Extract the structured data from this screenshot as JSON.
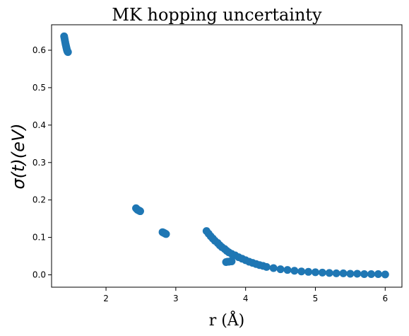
{
  "chart_data": {
    "type": "scatter",
    "title": "MK hopping uncertainty",
    "xlabel": "r (Å)",
    "ylabel": "σ(t)(eV)",
    "xlim": [
      1.22,
      6.24
    ],
    "ylim": [
      -0.033,
      0.668
    ],
    "xticks": [
      2,
      3,
      4,
      5,
      6
    ],
    "xtick_labels": [
      "2",
      "3",
      "4",
      "5",
      "6"
    ],
    "yticks": [
      0.0,
      0.1,
      0.2,
      0.3,
      0.4,
      0.5,
      0.6
    ],
    "ytick_labels": [
      "0.0",
      "0.1",
      "0.2",
      "0.3",
      "0.4",
      "0.5",
      "0.6"
    ],
    "grid": false,
    "legend": "none",
    "marker_color": "#1f77b4",
    "series": [
      {
        "x": [
          1.4,
          1.405,
          1.41,
          1.415,
          1.42,
          1.425,
          1.43,
          1.435,
          1.44,
          1.445,
          1.45,
          1.455,
          2.43,
          2.44,
          2.45,
          2.46,
          2.47,
          2.48,
          2.49,
          2.81,
          2.82,
          2.83,
          2.84,
          2.85,
          2.86,
          3.44,
          3.47,
          3.5,
          3.53,
          3.56,
          3.6,
          3.63,
          3.66,
          3.7,
          3.73,
          3.76,
          3.8,
          3.85,
          3.9,
          3.95,
          4.0,
          4.05,
          4.1,
          4.15,
          4.2,
          4.25,
          4.3,
          4.4,
          4.5,
          4.6,
          4.7,
          4.8,
          4.9,
          5.0,
          5.1,
          5.2,
          5.3,
          5.4,
          5.5,
          5.6,
          5.7,
          5.8,
          5.9,
          6.0,
          3.72,
          3.74,
          3.76,
          3.78,
          3.8
        ],
        "y": [
          0.637,
          0.632,
          0.627,
          0.622,
          0.617,
          0.613,
          0.609,
          0.605,
          0.601,
          0.598,
          0.596,
          0.595,
          0.178,
          0.176,
          0.174,
          0.173,
          0.172,
          0.171,
          0.17,
          0.114,
          0.113,
          0.112,
          0.111,
          0.11,
          0.109,
          0.117,
          0.11,
          0.103,
          0.097,
          0.091,
          0.085,
          0.079,
          0.074,
          0.069,
          0.064,
          0.06,
          0.056,
          0.052,
          0.047,
          0.043,
          0.039,
          0.035,
          0.032,
          0.029,
          0.026,
          0.024,
          0.021,
          0.018,
          0.015,
          0.013,
          0.011,
          0.009,
          0.008,
          0.007,
          0.006,
          0.005,
          0.004,
          0.004,
          0.003,
          0.003,
          0.002,
          0.002,
          0.002,
          0.001,
          0.034,
          0.035,
          0.035,
          0.036,
          0.036
        ]
      }
    ]
  }
}
